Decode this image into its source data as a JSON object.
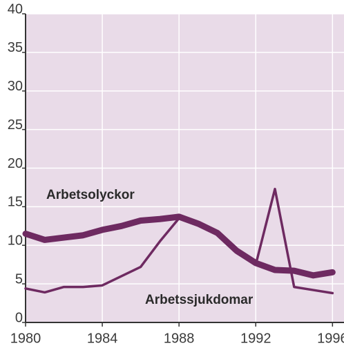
{
  "chart_data": {
    "type": "line",
    "x": [
      1980,
      1981,
      1982,
      1983,
      1984,
      1985,
      1986,
      1987,
      1988,
      1989,
      1990,
      1991,
      1992,
      1993,
      1994,
      1995,
      1996
    ],
    "series": [
      {
        "name": "Arbetsolyckor",
        "color": "#6e2a61",
        "width": 9,
        "values": [
          11.5,
          10.7,
          11,
          11.3,
          12,
          12.5,
          13.2,
          13.4,
          13.7,
          12.8,
          11.6,
          9.3,
          7.7,
          6.8,
          6.7,
          6.1,
          6.5
        ]
      },
      {
        "name": "Arbetssjukdomar",
        "color": "#6e2a61",
        "width": 3.5,
        "values": [
          4.4,
          3.9,
          4.6,
          4.6,
          4.8,
          6,
          7.2,
          10.5,
          13.5,
          13,
          11.5,
          9,
          7.5,
          17.3,
          4.6,
          4.2,
          3.8
        ]
      }
    ],
    "xlim": [
      1980,
      1996.6
    ],
    "xticks": [
      1980,
      1984,
      1988,
      1992,
      1996
    ],
    "ylim": [
      0,
      40
    ],
    "yticks": [
      0,
      5,
      10,
      15,
      20,
      25,
      30,
      35,
      40
    ],
    "grid": true
  }
}
